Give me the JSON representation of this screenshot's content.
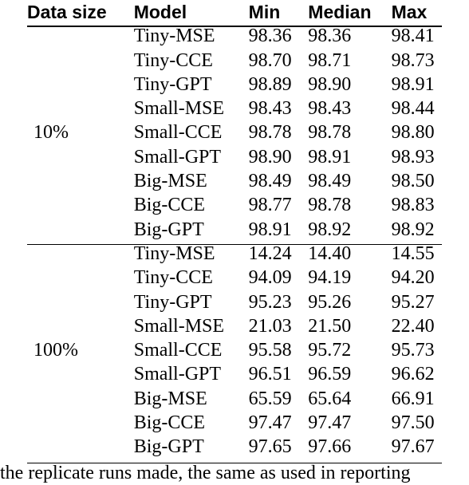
{
  "table": {
    "headers": [
      "Data size",
      "Model",
      "Min",
      "Median",
      "Max"
    ],
    "groups": [
      {
        "data_size": "10%",
        "rows": [
          {
            "model": "Tiny-MSE",
            "min": "98.36",
            "median": "98.36",
            "max": "98.41"
          },
          {
            "model": "Tiny-CCE",
            "min": "98.70",
            "median": "98.71",
            "max": "98.73"
          },
          {
            "model": "Tiny-GPT",
            "min": "98.89",
            "median": "98.90",
            "max": "98.91"
          },
          {
            "model": "Small-MSE",
            "min": "98.43",
            "median": "98.43",
            "max": "98.44"
          },
          {
            "model": "Small-CCE",
            "min": "98.78",
            "median": "98.78",
            "max": "98.80"
          },
          {
            "model": "Small-GPT",
            "min": "98.90",
            "median": "98.91",
            "max": "98.93"
          },
          {
            "model": "Big-MSE",
            "min": "98.49",
            "median": "98.49",
            "max": "98.50"
          },
          {
            "model": "Big-CCE",
            "min": "98.77",
            "median": "98.78",
            "max": "98.83"
          },
          {
            "model": "Big-GPT",
            "min": "98.91",
            "median": "98.92",
            "max": "98.92"
          }
        ]
      },
      {
        "data_size": "100%",
        "rows": [
          {
            "model": "Tiny-MSE",
            "min": "14.24",
            "median": "14.40",
            "max": "14.55"
          },
          {
            "model": "Tiny-CCE",
            "min": "94.09",
            "median": "94.19",
            "max": "94.20"
          },
          {
            "model": "Tiny-GPT",
            "min": "95.23",
            "median": "95.26",
            "max": "95.27"
          },
          {
            "model": "Small-MSE",
            "min": "21.03",
            "median": "21.50",
            "max": "22.40"
          },
          {
            "model": "Small-CCE",
            "min": "95.58",
            "median": "95.72",
            "max": "95.73"
          },
          {
            "model": "Small-GPT",
            "min": "96.51",
            "median": "96.59",
            "max": "96.62"
          },
          {
            "model": "Big-MSE",
            "min": "65.59",
            "median": "65.64",
            "max": "66.91"
          },
          {
            "model": "Big-CCE",
            "min": "97.47",
            "median": "97.47",
            "max": "97.50"
          },
          {
            "model": "Big-GPT",
            "min": "97.65",
            "median": "97.66",
            "max": "97.67"
          }
        ]
      }
    ]
  },
  "caption": "the replicate runs made, the same as used in reporting"
}
